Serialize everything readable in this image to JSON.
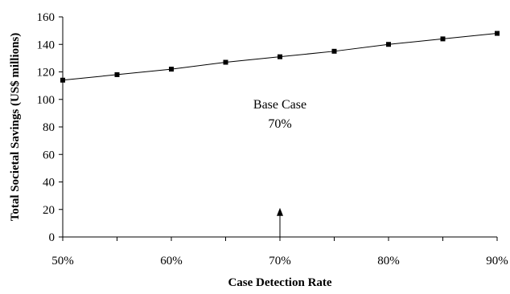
{
  "chart_data": {
    "type": "line",
    "title": "",
    "xlabel": "Case Detection Rate",
    "ylabel": "Total Societal Savings (US$ millions)",
    "x": [
      50,
      55,
      60,
      65,
      70,
      75,
      80,
      85,
      90
    ],
    "x_unit": "%",
    "x_ticks": [
      50,
      60,
      70,
      80,
      90
    ],
    "x_tick_labels": [
      "50%",
      "60%",
      "70%",
      "80%",
      "90%"
    ],
    "xlim": [
      50,
      90
    ],
    "ylim": [
      0,
      160
    ],
    "y_ticks": [
      0,
      20,
      40,
      60,
      80,
      100,
      120,
      140,
      160
    ],
    "y_tick_labels": [
      "0",
      "20",
      "40",
      "60",
      "80",
      "100",
      "120",
      "140",
      "160"
    ],
    "series": [
      {
        "values": [
          114,
          118,
          122,
          127,
          131,
          135,
          140,
          144,
          148
        ],
        "color": "#000000",
        "marker": "square"
      }
    ],
    "grid": false,
    "legend": "none",
    "annotation": {
      "lines": [
        "Base Case",
        "70%"
      ],
      "arrow_x": 70,
      "arrow_from_y": 0,
      "arrow_to_y": 20
    }
  }
}
